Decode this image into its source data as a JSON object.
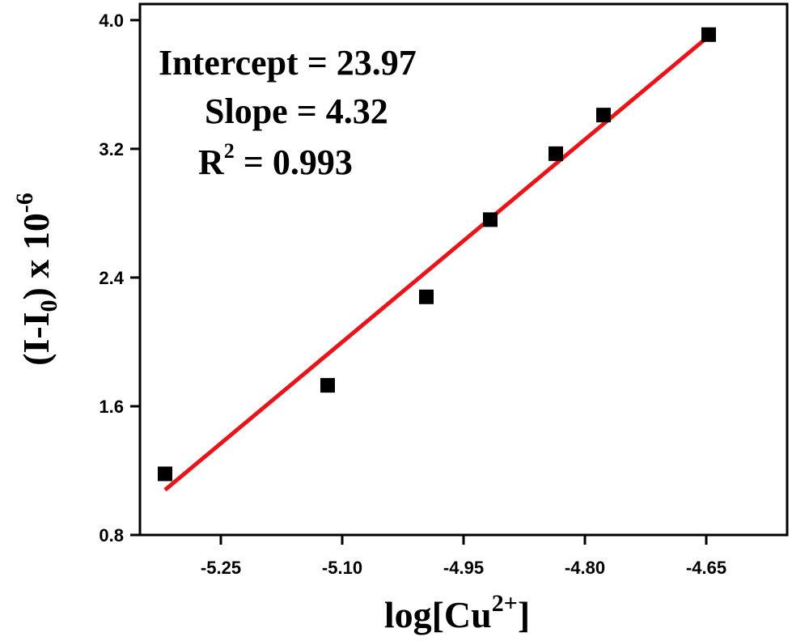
{
  "chart_data": {
    "type": "scatter",
    "x": [
      -5.319,
      -5.118,
      -4.996,
      -4.917,
      -4.836,
      -4.777,
      -4.647
    ],
    "y": [
      1.18,
      1.73,
      2.28,
      2.76,
      3.17,
      3.41,
      3.91
    ],
    "fit": {
      "type": "linear",
      "x_range": [
        -5.319,
        -4.647
      ],
      "y_range": [
        1.08,
        3.9
      ],
      "color": "#e8141a"
    },
    "marker_color": "#000000",
    "xlim": [
      -5.35,
      -4.55
    ],
    "ylim": [
      0.8,
      4.1
    ],
    "xticks": [
      -5.25,
      -5.1,
      -4.95,
      -4.8,
      -4.65
    ],
    "xtick_labels": [
      "-5.25",
      "-5.10",
      "-4.95",
      "-4.80",
      "-4.65"
    ],
    "yticks": [
      0.8,
      1.6,
      2.4,
      3.2,
      4.0
    ],
    "ytick_labels": [
      "0.8",
      "1.6",
      "2.4",
      "3.2",
      "4.0"
    ],
    "xlabel": {
      "main": "log[Cu",
      "sup": "2+",
      "end": "]"
    },
    "ylabel": {
      "main": "(I-I",
      "sub": "0",
      "mid": ") x 10",
      "sup": "-6"
    },
    "annotations": {
      "intercept": "Intercept = 23.97",
      "slope": "Slope = 4.32",
      "r_main": "R",
      "r_sup": "2",
      "r_value": " = 0.993"
    }
  }
}
